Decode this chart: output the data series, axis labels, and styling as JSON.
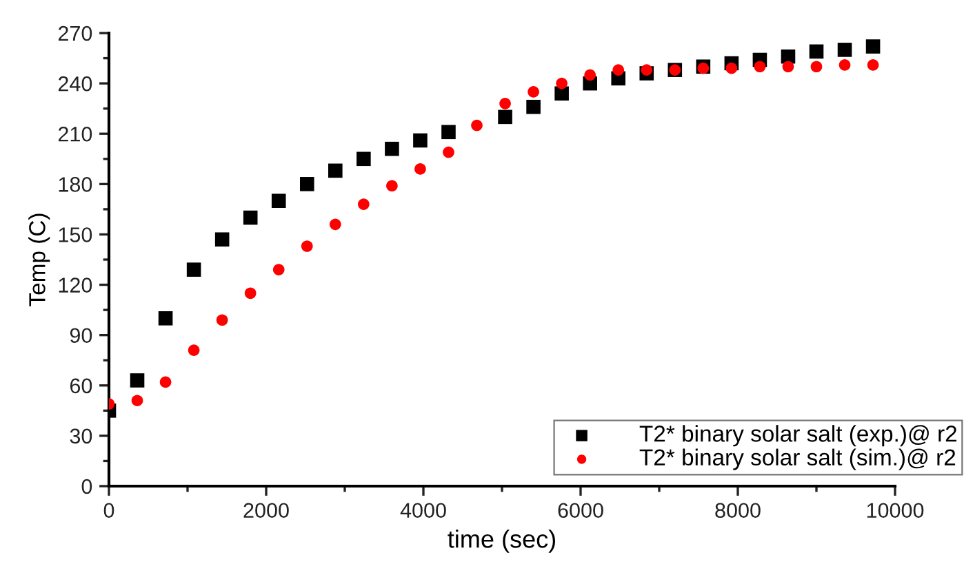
{
  "chart_data": {
    "type": "scatter",
    "xlabel": "time (sec)",
    "ylabel": "Temp (C)",
    "x": [
      0,
      360,
      720,
      1080,
      1440,
      1800,
      2160,
      2520,
      2880,
      3240,
      3600,
      3960,
      4320,
      4680,
      5040,
      5400,
      5760,
      6120,
      6480,
      6840,
      7200,
      7560,
      7920,
      8280,
      8640,
      9000,
      9360,
      9720
    ],
    "series": [
      {
        "name": "T2* binary solar salt (exp.)@ r2",
        "color": "#000000",
        "marker": "square",
        "values": [
          45,
          63,
          100,
          129,
          147,
          160,
          170,
          180,
          188,
          195,
          201,
          206,
          211,
          null,
          220,
          226,
          234,
          240,
          243,
          246,
          248,
          250,
          252,
          254,
          256,
          259,
          260,
          262
        ]
      },
      {
        "name": "T2* binary solar salt (sim.)@ r2",
        "color": "#ff0000",
        "marker": "circle",
        "values": [
          49,
          51,
          62,
          81,
          99,
          115,
          129,
          143,
          156,
          168,
          179,
          189,
          199,
          215,
          228,
          235,
          240,
          245,
          248,
          248,
          248,
          249,
          249,
          250,
          250,
          250,
          251,
          251
        ]
      }
    ],
    "xlim": [
      0,
      10000
    ],
    "xticks": [
      0,
      2000,
      4000,
      6000,
      8000,
      10000
    ],
    "ylim": [
      0,
      270
    ],
    "yticks": [
      0,
      30,
      60,
      90,
      120,
      150,
      180,
      210,
      240,
      270
    ],
    "grid": false,
    "legend": "bottom right"
  }
}
